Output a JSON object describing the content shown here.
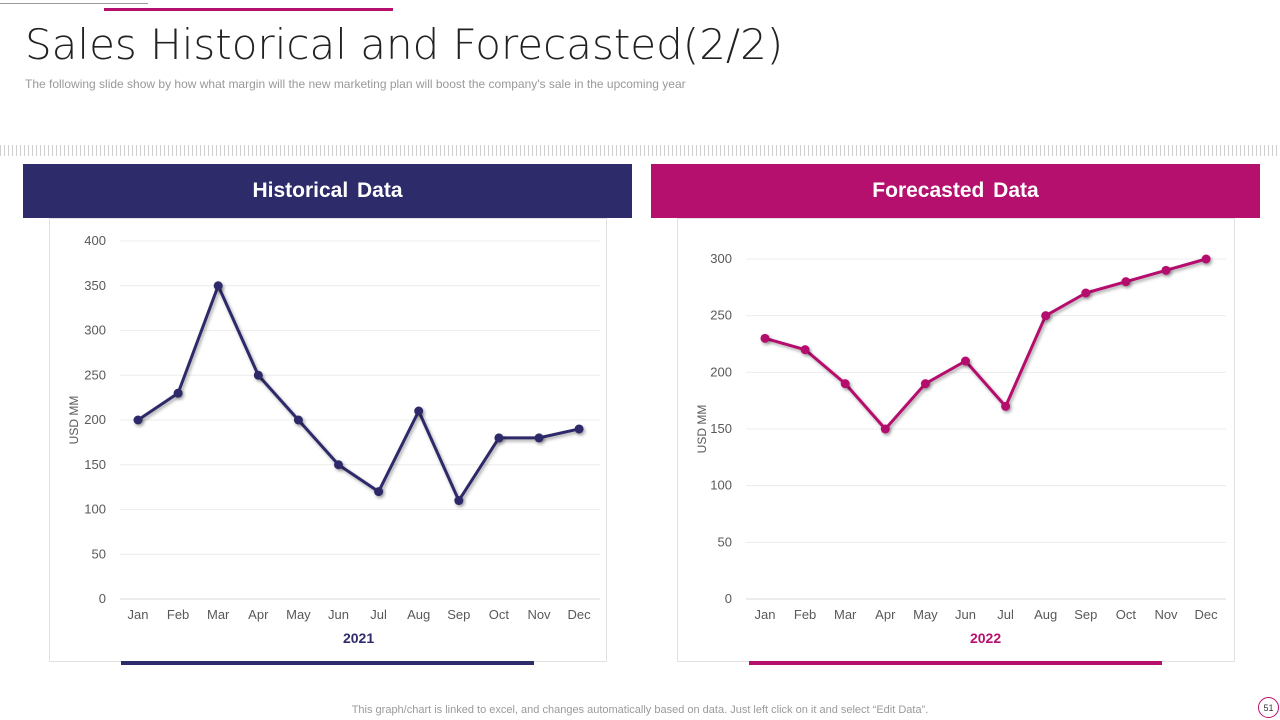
{
  "page": {
    "title": "Sales Historical and Forecasted(2/2)",
    "subtitle": "The following  slide show by how what margin will the new marketing plan will boost the company's sale in the upcoming year",
    "footer_note": "This graph/chart is linked to excel,  and changes automatically based on data. Just left click on it and select “Edit Data”.",
    "page_number": "51"
  },
  "colors": {
    "historical": "#2e2b6a",
    "forecast": "#b5106e"
  },
  "chart_data": [
    {
      "type": "line",
      "title": "Historical Data",
      "categories": [
        "Jan",
        "Feb",
        "Mar",
        "Apr",
        "May",
        "Jun",
        "Jul",
        "Aug",
        "Sep",
        "Oct",
        "Nov",
        "Dec"
      ],
      "series": [
        {
          "name": "2021",
          "values": [
            200,
            230,
            350,
            250,
            200,
            150,
            120,
            210,
            110,
            180,
            180,
            190
          ]
        }
      ],
      "xlabel": "2021",
      "ylabel": "USD MM",
      "ylim": [
        0,
        400
      ],
      "yticks": [
        0,
        50,
        100,
        150,
        200,
        250,
        300,
        350,
        400
      ],
      "grid": true
    },
    {
      "type": "line",
      "title": "Forecasted Data",
      "categories": [
        "Jan",
        "Feb",
        "Mar",
        "Apr",
        "May",
        "Jun",
        "Jul",
        "Aug",
        "Sep",
        "Oct",
        "Nov",
        "Dec"
      ],
      "series": [
        {
          "name": "2022",
          "values": [
            230,
            220,
            190,
            150,
            190,
            210,
            170,
            250,
            270,
            280,
            290,
            300
          ]
        }
      ],
      "xlabel": "2022",
      "ylabel": "USD MM",
      "ylim": [
        0,
        300
      ],
      "yticks": [
        0,
        50,
        100,
        150,
        200,
        250,
        300
      ],
      "grid": true
    }
  ]
}
